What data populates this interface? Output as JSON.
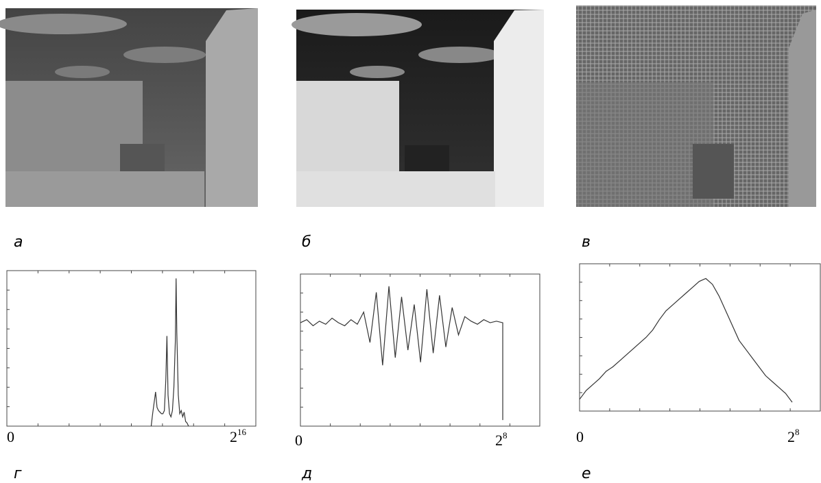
{
  "panels": [
    {
      "label": "а"
    },
    {
      "label": "б"
    },
    {
      "label": "в"
    }
  ],
  "histograms": [
    {
      "label": "г",
      "x_min_label": "0",
      "x_max_label": {
        "base": "2",
        "exp": "16"
      },
      "xlim": [
        0,
        65536
      ],
      "ylim": [
        0,
        100
      ],
      "x": [
        39400,
        39800,
        40200,
        40600,
        41000,
        41400,
        41800,
        42200,
        42600,
        43000,
        43400,
        43700,
        44000,
        44400,
        44800,
        45200,
        45600,
        46000,
        46200,
        46400,
        46800,
        47200,
        47600,
        48000,
        48400,
        48800,
        49200,
        49600
      ],
      "values": [
        0,
        8,
        15,
        22,
        12,
        10,
        9,
        8,
        8,
        10,
        30,
        58,
        20,
        8,
        6,
        10,
        25,
        55,
        95,
        60,
        20,
        8,
        10,
        6,
        9,
        3,
        2,
        0
      ]
    },
    {
      "label": "д",
      "x_min_label": "0",
      "x_max_label": {
        "base": "2",
        "exp": "8"
      },
      "xlim": [
        0,
        256
      ],
      "ylim": [
        0,
        100
      ],
      "x": [
        0,
        8,
        16,
        24,
        32,
        40,
        48,
        56,
        64,
        72,
        80,
        88,
        96,
        104,
        112,
        120,
        128,
        136,
        144,
        152,
        160,
        168,
        176,
        184,
        192,
        200,
        208,
        216,
        224,
        232,
        240,
        248,
        256,
        256
      ],
      "values": [
        68,
        70,
        66,
        69,
        67,
        71,
        68,
        66,
        70,
        67,
        75,
        55,
        88,
        40,
        92,
        45,
        85,
        50,
        80,
        42,
        90,
        48,
        86,
        52,
        78,
        60,
        72,
        69,
        67,
        70,
        68,
        69,
        68,
        4
      ]
    },
    {
      "label": "е",
      "x_min_label": "0",
      "x_max_label": {
        "base": "2",
        "exp": "8"
      },
      "xlim": [
        0,
        256
      ],
      "ylim": [
        0,
        100
      ],
      "x": [
        0,
        8,
        16,
        24,
        32,
        40,
        48,
        56,
        64,
        72,
        80,
        88,
        96,
        104,
        112,
        120,
        128,
        136,
        144,
        152,
        160,
        168,
        176,
        184,
        192,
        200,
        208,
        216,
        224,
        232,
        240,
        248,
        256
      ],
      "values": [
        8,
        14,
        18,
        22,
        27,
        30,
        34,
        38,
        42,
        46,
        50,
        55,
        62,
        68,
        72,
        76,
        80,
        84,
        88,
        90,
        86,
        78,
        68,
        58,
        48,
        42,
        36,
        30,
        24,
        20,
        16,
        12,
        6
      ]
    }
  ]
}
